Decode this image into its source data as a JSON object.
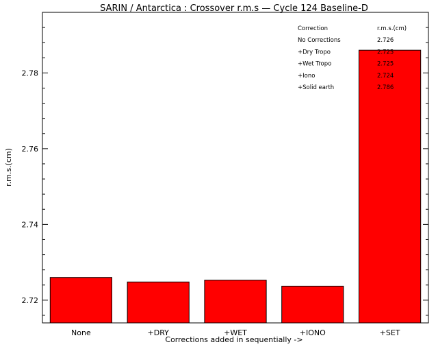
{
  "chart_data": {
    "type": "bar",
    "title": "SARIN / Antarctica : Crossover r.m.s — Cycle 124 Baseline-D",
    "xlabel": "Corrections added in sequentially ->",
    "ylabel": "r.m.s.(cm)",
    "categories": [
      "None",
      "+DRY",
      "+WET",
      "+IONO",
      "+SET"
    ],
    "values": [
      2.726,
      2.7248,
      2.7253,
      2.7237,
      2.786
    ],
    "ylim": [
      2.714,
      2.796
    ],
    "yticks": [
      2.72,
      2.74,
      2.76,
      2.78
    ],
    "ytick_labels": [
      "2.72",
      "2.74",
      "2.76",
      "2.78"
    ],
    "bar_color": "#ff0000",
    "grid": false,
    "legend_table": {
      "header": [
        "Correction",
        "r.m.s.(cm)"
      ],
      "rows": [
        [
          "No Corrections",
          "2.726"
        ],
        [
          "+Dry Tropo",
          "2.725"
        ],
        [
          "+Wet Tropo",
          "2.725"
        ],
        [
          "+Iono",
          "2.724"
        ],
        [
          "+Solid earth",
          "2.786"
        ]
      ],
      "placement": "top-right"
    }
  }
}
